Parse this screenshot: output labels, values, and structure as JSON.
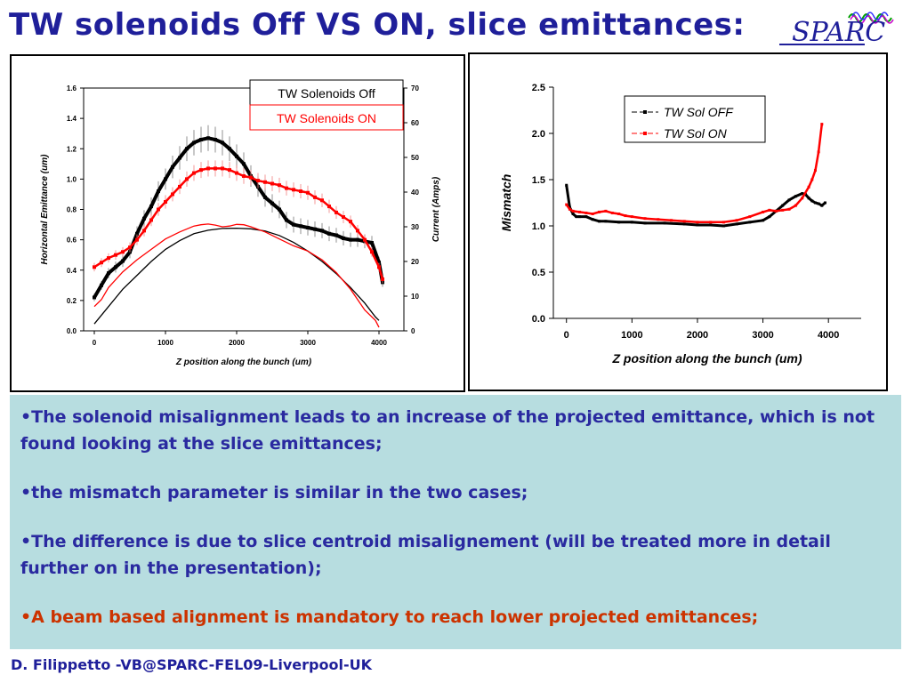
{
  "slide": {
    "title": "TW solenoids Off VS ON, slice emittances:",
    "logo_text": "SPARC",
    "footer": "D. Filippetto -VB@SPARC-FEL09-Liverpool-UK",
    "bullets": [
      "•The solenoid misalignment leads to an increase of the projected emittance, which is not found looking at the slice emittances;",
      "•the mismatch parameter is similar in the two cases;",
      "•The difference is due to slice centroid misalignement (will be treated more in detail further on in the presentation);",
      "•A beam based alignment is mandatory to reach lower projected emittances;"
    ],
    "colors": {
      "title": "#1f1f9a",
      "text": "#2a2aa0",
      "highlight": "#cc3300",
      "box": "#b7dde0"
    }
  },
  "chart_data": [
    {
      "type": "line",
      "xlabel": "Z position along the bunch (um)",
      "ylabel": "Horizontal Emittance (um)",
      "y2label": "Current (Amps)",
      "xlim": [
        -150,
        4350
      ],
      "ylim": [
        0,
        1.6
      ],
      "y2lim": [
        0,
        70
      ],
      "xticks": [
        0,
        1000,
        2000,
        3000,
        4000
      ],
      "yticks": [
        0.0,
        0.2,
        0.4,
        0.6,
        0.8,
        1.0,
        1.2,
        1.4,
        1.6
      ],
      "y2ticks": [
        0,
        10,
        20,
        30,
        40,
        50,
        60,
        70
      ],
      "legend": [
        "TW Solenoids Off",
        "TW Solenoids ON"
      ],
      "legend_position": "top-right",
      "series": [
        {
          "name": "TW Solenoids Off",
          "color": "#000000",
          "axis": "left",
          "markers": true,
          "x": [
            0,
            100,
            200,
            300,
            400,
            500,
            600,
            700,
            800,
            900,
            1000,
            1100,
            1200,
            1300,
            1400,
            1500,
            1600,
            1700,
            1800,
            1900,
            2000,
            2100,
            2200,
            2300,
            2400,
            2500,
            2600,
            2700,
            2800,
            2900,
            3000,
            3100,
            3200,
            3300,
            3400,
            3500,
            3600,
            3700,
            3800,
            3900,
            4000,
            4050
          ],
          "y": [
            0.22,
            0.3,
            0.38,
            0.42,
            0.46,
            0.52,
            0.64,
            0.74,
            0.82,
            0.92,
            1.0,
            1.08,
            1.14,
            1.2,
            1.24,
            1.26,
            1.27,
            1.26,
            1.24,
            1.2,
            1.15,
            1.1,
            1.02,
            0.95,
            0.88,
            0.84,
            0.8,
            0.73,
            0.7,
            0.69,
            0.68,
            0.67,
            0.66,
            0.64,
            0.63,
            0.61,
            0.6,
            0.6,
            0.59,
            0.58,
            0.45,
            0.32
          ]
        },
        {
          "name": "TW Solenoids ON",
          "color": "#ff0000",
          "axis": "left",
          "markers": true,
          "x": [
            0,
            100,
            200,
            300,
            400,
            500,
            600,
            700,
            800,
            900,
            1000,
            1100,
            1200,
            1300,
            1400,
            1500,
            1600,
            1700,
            1800,
            1900,
            2000,
            2100,
            2200,
            2300,
            2400,
            2500,
            2600,
            2700,
            2800,
            2900,
            3000,
            3100,
            3200,
            3300,
            3400,
            3500,
            3600,
            3700,
            3800,
            3900,
            4000,
            4050
          ],
          "y": [
            0.42,
            0.45,
            0.48,
            0.5,
            0.52,
            0.55,
            0.6,
            0.66,
            0.73,
            0.8,
            0.85,
            0.9,
            0.95,
            1.0,
            1.04,
            1.06,
            1.07,
            1.07,
            1.07,
            1.06,
            1.04,
            1.02,
            1.01,
            0.99,
            0.98,
            0.97,
            0.96,
            0.94,
            0.93,
            0.92,
            0.91,
            0.88,
            0.86,
            0.82,
            0.78,
            0.75,
            0.72,
            0.66,
            0.6,
            0.52,
            0.42,
            0.34
          ]
        },
        {
          "name": "Current, TW Solenoids Off",
          "color": "#000000",
          "axis": "right",
          "markers": false,
          "x": [
            0,
            200,
            400,
            600,
            800,
            1000,
            1200,
            1400,
            1600,
            1800,
            2000,
            2200,
            2400,
            2600,
            2800,
            3000,
            3200,
            3400,
            3600,
            3800,
            3950,
            4000
          ],
          "y": [
            2,
            7,
            12,
            16,
            20,
            23.5,
            26,
            28,
            29,
            29.5,
            29.6,
            29.4,
            28.8,
            27.5,
            25.5,
            23,
            20,
            16.5,
            12.5,
            8,
            4,
            3
          ]
        },
        {
          "name": "Current, TW Solenoids ON",
          "color": "#ff0000",
          "axis": "right",
          "markers": false,
          "x": [
            0,
            100,
            200,
            400,
            600,
            800,
            1000,
            1200,
            1400,
            1500,
            1600,
            1700,
            1800,
            1900,
            2000,
            2100,
            2200,
            2400,
            2600,
            2800,
            3000,
            3200,
            3400,
            3600,
            3800,
            3950,
            4000
          ],
          "y": [
            7,
            9,
            12.5,
            17,
            20.5,
            23.5,
            26.5,
            28.5,
            30.2,
            30.6,
            30.8,
            30.5,
            30,
            30.2,
            30.7,
            30.6,
            30,
            28.5,
            26.5,
            24.5,
            23,
            20.5,
            16.8,
            12,
            6,
            3,
            1
          ]
        }
      ]
    },
    {
      "type": "line",
      "xlabel": "Z position along the bunch (um)",
      "ylabel": "Mismatch",
      "xlim": [
        -200,
        4500
      ],
      "ylim": [
        0,
        2.5
      ],
      "xticks": [
        0,
        1000,
        2000,
        3000,
        4000
      ],
      "yticks": [
        0.0,
        0.5,
        1.0,
        1.5,
        2.0,
        2.5
      ],
      "legend": [
        "TW Sol OFF",
        "TW Sol ON"
      ],
      "legend_position": "top-center",
      "series": [
        {
          "name": "TW Sol OFF",
          "color": "#000000",
          "x": [
            0,
            50,
            100,
            150,
            200,
            300,
            400,
            500,
            600,
            800,
            1000,
            1200,
            1500,
            1800,
            2000,
            2200,
            2400,
            2600,
            2800,
            3000,
            3100,
            3200,
            3300,
            3400,
            3500,
            3600,
            3650,
            3700,
            3750,
            3800,
            3850,
            3900,
            3950
          ],
          "y": [
            1.44,
            1.2,
            1.13,
            1.1,
            1.1,
            1.1,
            1.07,
            1.05,
            1.05,
            1.04,
            1.04,
            1.03,
            1.03,
            1.02,
            1.01,
            1.01,
            1.0,
            1.02,
            1.04,
            1.06,
            1.1,
            1.16,
            1.22,
            1.28,
            1.32,
            1.35,
            1.34,
            1.3,
            1.27,
            1.25,
            1.24,
            1.22,
            1.25
          ]
        },
        {
          "name": "TW Sol ON",
          "color": "#ff0000",
          "x": [
            0,
            50,
            100,
            200,
            300,
            400,
            500,
            600,
            700,
            800,
            900,
            1000,
            1200,
            1400,
            1600,
            1800,
            2000,
            2200,
            2400,
            2600,
            2800,
            3000,
            3100,
            3200,
            3300,
            3400,
            3500,
            3600,
            3700,
            3750,
            3800,
            3850,
            3900
          ],
          "y": [
            1.23,
            1.18,
            1.16,
            1.15,
            1.14,
            1.13,
            1.15,
            1.16,
            1.14,
            1.13,
            1.11,
            1.1,
            1.08,
            1.07,
            1.06,
            1.05,
            1.04,
            1.04,
            1.04,
            1.06,
            1.1,
            1.15,
            1.17,
            1.16,
            1.17,
            1.18,
            1.22,
            1.3,
            1.42,
            1.5,
            1.6,
            1.8,
            2.1
          ]
        }
      ]
    }
  ]
}
